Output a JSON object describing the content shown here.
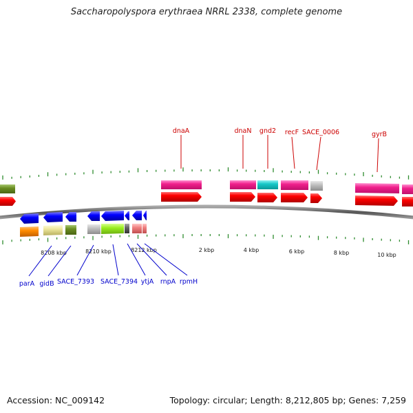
{
  "title": "Saccharopolyspora erythraea NRRL 2338, complete genome",
  "footer": {
    "accession": "Accession: NC_009142",
    "summary": "Topology: circular; Length: 8,212,805 bp; Genes: 7,259"
  },
  "scale_labels": [
    "8208 kbp",
    "8210 kbp",
    "8212 kbp",
    "2 kbp",
    "4 kbp",
    "6 kbp",
    "8 kbp",
    "10 kbp"
  ],
  "top_genes": [
    "dnaA",
    "dnaN",
    "gnd2",
    "recF",
    "SACE_0006",
    "gyrB"
  ],
  "bottom_genes": [
    "parA",
    "gidB",
    "SACE_7393",
    "SACE_7394",
    "ytjA",
    "rnpA",
    "rpmH"
  ],
  "colors": {
    "forward_feature": "#ff0000",
    "reverse_feature": "#0000ff",
    "label_forward": "#cc0000",
    "label_reverse": "#0000cc",
    "tick": "#2e8b2e",
    "backbone": "#666666"
  }
}
